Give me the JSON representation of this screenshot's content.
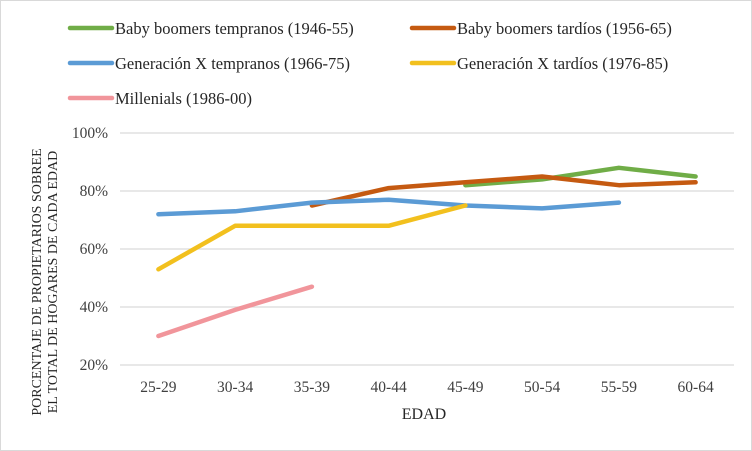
{
  "chart_data": {
    "type": "line",
    "title": "",
    "xlabel": "EDAD",
    "ylabel": [
      "PORCENTAJE DE PROPIETARIOS SOBREE",
      "EL TOTAL DE HOGARES DE CADA EDAD"
    ],
    "categories": [
      "25-29",
      "30-34",
      "35-39",
      "40-44",
      "45-49",
      "50-54",
      "55-59",
      "60-64"
    ],
    "yticks": [
      "20%",
      "40%",
      "60%",
      "80%",
      "100%"
    ],
    "ylim": [
      20,
      100
    ],
    "grid": true,
    "legend_position": "top",
    "series": [
      {
        "name": "Baby boomers tempranos (1946-55)",
        "color": "#70ad47",
        "values": [
          null,
          null,
          null,
          null,
          82,
          84,
          88,
          85
        ]
      },
      {
        "name": "Baby boomers tardíos (1956-65)",
        "color": "#c55a11",
        "values": [
          null,
          null,
          75,
          81,
          83,
          85,
          82,
          83
        ]
      },
      {
        "name": "Generación X tempranos (1966-75)",
        "color": "#5b9bd5",
        "values": [
          72,
          73,
          76,
          77,
          75,
          74,
          76,
          null
        ]
      },
      {
        "name": "Generación X tardíos (1976-85)",
        "color": "#f2c01e",
        "values": [
          53,
          68,
          68,
          68,
          75,
          null,
          null,
          null
        ]
      },
      {
        "name": "Millenials (1986-00)",
        "color": "#f1959b",
        "values": [
          30,
          39,
          47,
          null,
          null,
          null,
          null,
          null
        ]
      }
    ]
  },
  "legend": {
    "items": [
      {
        "label": "Baby boomers tempranos (1946-55)"
      },
      {
        "label": "Baby boomers tardíos (1956-65)"
      },
      {
        "label": "Generación X tempranos (1966-75)"
      },
      {
        "label": "Generación X tardíos (1976-85)"
      },
      {
        "label": "Millenials (1986-00)"
      }
    ]
  },
  "axes": {
    "x_title": "EDAD",
    "y_title_line1": "PORCENTAJE DE PROPIETARIOS SOBREE",
    "y_title_line2": "EL TOTAL DE HOGARES DE CADA EDAD"
  }
}
